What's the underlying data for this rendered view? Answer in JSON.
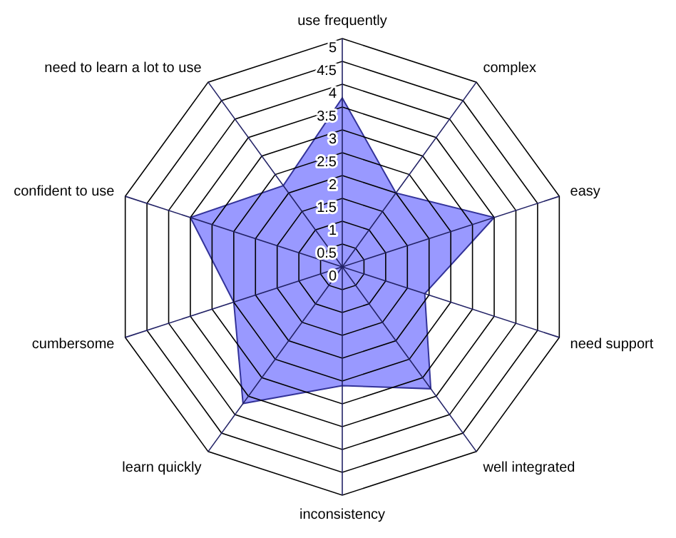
{
  "chart_data": {
    "type": "radar",
    "categories": [
      "use frequently",
      "complex",
      "easy",
      "need support",
      "well integrated",
      "inconsistency",
      "learn quickly",
      "cumbersome",
      "confident to use",
      "need to learn a lot to use"
    ],
    "series": [
      {
        "color": "#9999ff",
        "values": [
          3.7,
          2.0,
          3.5,
          1.9,
          3.3,
          2.6,
          3.7,
          2.5,
          3.5,
          2.2
        ]
      }
    ],
    "ylim": [
      0,
      5
    ],
    "yticks": [
      0,
      {
        "value": 0.5,
        "label": "0.5"
      },
      1,
      {
        "value": 1.5,
        "label": "1.5"
      },
      2,
      {
        "value": 2.5,
        "label": "2.5"
      },
      3,
      {
        "value": 3.5,
        "label": "3.5"
      },
      4,
      {
        "value": 4.5,
        "label": "4.5"
      },
      5
    ]
  }
}
